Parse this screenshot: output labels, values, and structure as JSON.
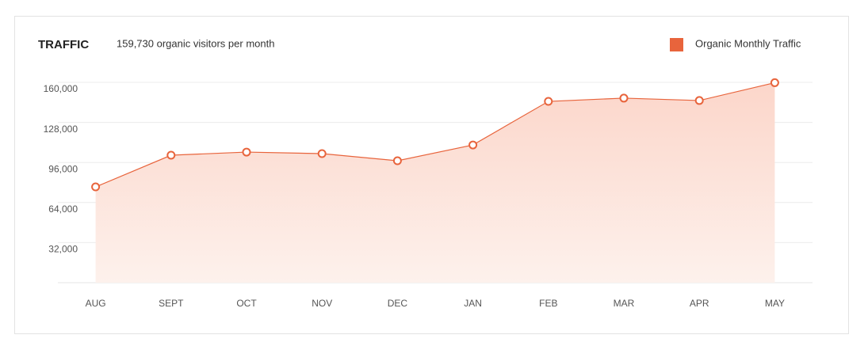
{
  "chart_data": {
    "type": "area",
    "title": "TRAFFIC",
    "subtitle": "159,730 organic visitors per month",
    "categories": [
      "AUG",
      "SEPT",
      "OCT",
      "NOV",
      "DEC",
      "JAN",
      "FEB",
      "MAR",
      "APR",
      "MAY"
    ],
    "series": [
      {
        "name": "Organic Monthly Traffic",
        "color": "#e8643c",
        "values": [
          76500,
          101800,
          104300,
          103100,
          97400,
          110000,
          144800,
          147400,
          145500,
          159730
        ]
      }
    ],
    "ylim": [
      0,
      160000
    ],
    "yticks": [
      {
        "value": 32000,
        "label": "32,000"
      },
      {
        "value": 64000,
        "label": "64,000"
      },
      {
        "value": 96000,
        "label": "96,000"
      },
      {
        "value": 128000,
        "label": "128,000"
      },
      {
        "value": 160000,
        "label": "160,000"
      }
    ],
    "grid": true,
    "legend": "top-right"
  }
}
